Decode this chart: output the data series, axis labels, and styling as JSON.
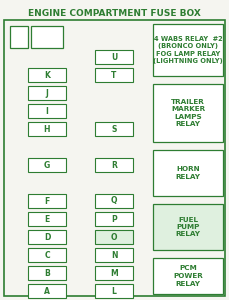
{
  "title": "ENGINE COMPARTMENT FUSE BOX",
  "bg_color": "#f5f5f0",
  "border_color": "#2e7d32",
  "text_color": "#2e7d32",
  "title_color": "#2e7d32",
  "fuse_fill": "#ffffff",
  "relay_fill_highlight": "#dff0df",
  "left_col_fuses": [
    {
      "label": "K",
      "row": 0
    },
    {
      "label": "J",
      "row": 1
    },
    {
      "label": "I",
      "row": 2
    },
    {
      "label": "H",
      "row": 3
    },
    {
      "label": "G",
      "row": 5
    },
    {
      "label": "F",
      "row": 7
    },
    {
      "label": "E",
      "row": 8
    },
    {
      "label": "D",
      "row": 9
    },
    {
      "label": "C",
      "row": 10
    },
    {
      "label": "B",
      "row": 11
    },
    {
      "label": "A",
      "row": 12
    }
  ],
  "right_col_fuses": [
    {
      "label": "U",
      "row": -1
    },
    {
      "label": "T",
      "row": 0
    },
    {
      "label": "S",
      "row": 3
    },
    {
      "label": "R",
      "row": 5
    },
    {
      "label": "Q",
      "row": 7
    },
    {
      "label": "P",
      "row": 8
    },
    {
      "label": "O",
      "row": 9,
      "highlight": true
    },
    {
      "label": "N",
      "row": 10
    },
    {
      "label": "M",
      "row": 11
    },
    {
      "label": "L",
      "row": 12
    }
  ]
}
